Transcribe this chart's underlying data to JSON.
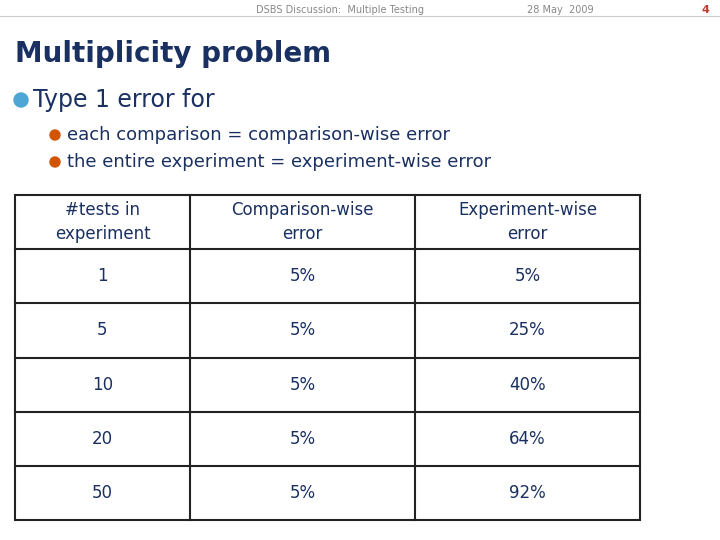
{
  "header_text": "DSBS Discussion:  Multiple Testing",
  "date_text": "28 May  2009",
  "page_num": "4",
  "title": "Multiplicity problem",
  "bullet1": "Type 1 error for",
  "sub_bullet1": "each comparison = comparison-wise error",
  "sub_bullet2": "the entire experiment = experiment-wise error",
  "table_headers": [
    "#tests in\nexperiment",
    "Comparison-wise\nerror",
    "Experiment-wise\nerror"
  ],
  "table_rows": [
    [
      "1",
      "5%",
      "5%"
    ],
    [
      "5",
      "5%",
      "25%"
    ],
    [
      "10",
      "5%",
      "40%"
    ],
    [
      "20",
      "5%",
      "64%"
    ],
    [
      "50",
      "5%",
      "92%"
    ]
  ],
  "title_color": "#1a3060",
  "header_color": "#888888",
  "page_color": "#c0392b",
  "bullet1_color": "#4da6d6",
  "sub_bullet_color": "#d35400",
  "text_color": "#1a3060",
  "table_text_color": "#1a3060",
  "table_border_color": "#222222",
  "background_color": "#ffffff",
  "font_size_header": 7,
  "font_size_title": 20,
  "font_size_bullet1": 17,
  "font_size_sub_bullet": 13,
  "font_size_table": 12
}
